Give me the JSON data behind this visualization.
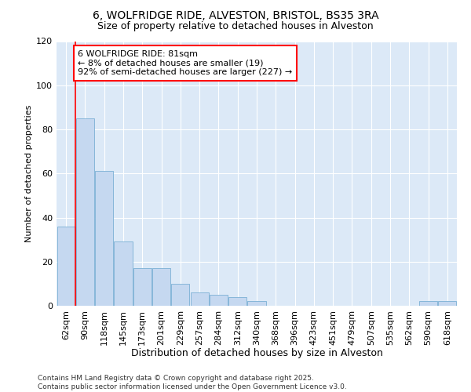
{
  "title1": "6, WOLFRIDGE RIDE, ALVESTON, BRISTOL, BS35 3RA",
  "title2": "Size of property relative to detached houses in Alveston",
  "xlabel": "Distribution of detached houses by size in Alveston",
  "ylabel": "Number of detached properties",
  "categories": [
    "62sqm",
    "90sqm",
    "118sqm",
    "145sqm",
    "173sqm",
    "201sqm",
    "229sqm",
    "257sqm",
    "284sqm",
    "312sqm",
    "340sqm",
    "368sqm",
    "396sqm",
    "423sqm",
    "451sqm",
    "479sqm",
    "507sqm",
    "535sqm",
    "562sqm",
    "590sqm",
    "618sqm"
  ],
  "values": [
    36,
    85,
    61,
    29,
    17,
    17,
    10,
    6,
    5,
    4,
    2,
    0,
    0,
    0,
    0,
    0,
    0,
    0,
    0,
    2,
    2
  ],
  "bar_color": "#c5d8f0",
  "bar_edge_color": "#7aafd4",
  "annotation_text": "6 WOLFRIDGE RIDE: 81sqm\n← 8% of detached houses are smaller (19)\n92% of semi-detached houses are larger (227) →",
  "annotation_box_color": "white",
  "annotation_border_color": "red",
  "red_line_x": 0.5,
  "ylim": [
    0,
    120
  ],
  "yticks": [
    0,
    20,
    40,
    60,
    80,
    100,
    120
  ],
  "fig_bg_color": "#ffffff",
  "plot_bg_color": "#dce9f7",
  "grid_color": "#ffffff",
  "title1_fontsize": 10,
  "title2_fontsize": 9,
  "xlabel_fontsize": 9,
  "ylabel_fontsize": 8,
  "tick_fontsize": 8,
  "annotation_fontsize": 8,
  "footer_fontsize": 6.5,
  "footer_text": "Contains HM Land Registry data © Crown copyright and database right 2025.\nContains public sector information licensed under the Open Government Licence v3.0."
}
